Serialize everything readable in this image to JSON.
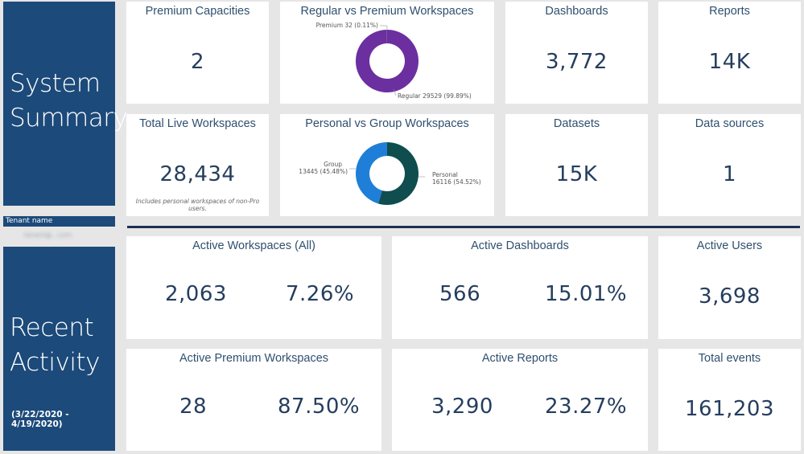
{
  "side": {
    "summary_line1": "System",
    "summary_line2": "Summary",
    "tenant_label": "Tenant name",
    "tenant_value": "tenant@...com",
    "activity_line1": "Recent",
    "activity_line2": "Activity",
    "date_range": "(3/22/2020 - 4/19/2020)"
  },
  "summary": {
    "premium_capacities": {
      "title": "Premium Capacities",
      "value": "2"
    },
    "regular_vs_premium": {
      "title": "Regular vs Premium Workspaces",
      "premium_label": "Premium 32 (0.11%)",
      "regular_label": "Regular 29529 (99.89%)"
    },
    "dashboards": {
      "title": "Dashboards",
      "value": "3,772"
    },
    "reports": {
      "title": "Reports",
      "value": "14K"
    },
    "total_live_workspaces": {
      "title": "Total Live Workspaces",
      "value": "28,434",
      "note": "Includes personal workspaces of non-Pro users."
    },
    "personal_vs_group": {
      "title": "Personal vs Group Workspaces",
      "group_label_line1": "Group",
      "group_label_line2": "13445 (45.48%)",
      "personal_label_line1": "Personal",
      "personal_label_line2": "16116 (54.52%)"
    },
    "datasets": {
      "title": "Datasets",
      "value": "15K"
    },
    "data_sources": {
      "title": "Data sources",
      "value": "1"
    }
  },
  "activity": {
    "active_workspaces": {
      "title": "Active Workspaces (All)",
      "count": "2,063",
      "percent": "7.26%"
    },
    "active_dashboards": {
      "title": "Active Dashboards",
      "count": "566",
      "percent": "15.01%"
    },
    "active_users": {
      "title": "Active Users",
      "value": "3,698"
    },
    "active_premium_workspaces": {
      "title": "Active Premium Workspaces",
      "count": "28",
      "percent": "87.50%"
    },
    "active_reports": {
      "title": "Active Reports",
      "count": "3,290",
      "percent": "23.27%"
    },
    "total_events": {
      "title": "Total events",
      "value": "161,203"
    }
  },
  "chart_data": [
    {
      "type": "pie",
      "title": "Regular vs Premium Workspaces",
      "categories": [
        "Premium",
        "Regular"
      ],
      "values": [
        32,
        29529
      ],
      "colors": [
        "#bdbdbd",
        "#6b2fa0"
      ]
    },
    {
      "type": "pie",
      "title": "Personal vs Group Workspaces",
      "categories": [
        "Group",
        "Personal"
      ],
      "values": [
        13445,
        16116
      ],
      "colors": [
        "#1f7fd8",
        "#0f4d4f"
      ]
    }
  ]
}
